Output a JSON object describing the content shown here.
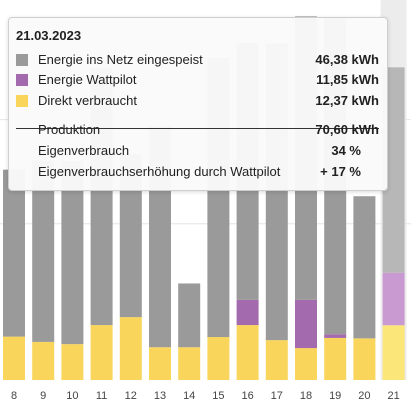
{
  "colors": {
    "grid": "#e6e6e6",
    "highlight_band": "#ececec"
  },
  "chart_data": {
    "type": "bar",
    "stacked": true,
    "categories": [
      "8",
      "9",
      "10",
      "11",
      "12",
      "13",
      "14",
      "15",
      "16",
      "17",
      "18",
      "19",
      "20",
      "21"
    ],
    "ylim": [
      0,
      84
    ],
    "grid": true,
    "highlighted_category": "21",
    "series": [
      {
        "name": "Direkt verbraucht",
        "color": "#f9d55b",
        "highlight_color": "#fbe67a",
        "values": [
          9.8,
          8.6,
          8.1,
          12.4,
          14.2,
          7.4,
          7.4,
          9.7,
          12.4,
          9.0,
          7.2,
          9.5,
          9.4,
          12.37
        ]
      },
      {
        "name": "Energie Wattpilot",
        "color": "#a46aae",
        "highlight_color": "#c99ad1",
        "values": [
          0,
          0,
          0,
          0,
          0,
          0,
          0,
          0,
          5.7,
          0,
          10.9,
          0.8,
          0,
          11.85
        ]
      },
      {
        "name": "Energie ins Netz eingespeist",
        "color": "#9a9a9a",
        "highlight_color": "#b7b7b7",
        "values": [
          37.7,
          41.0,
          41.4,
          58.0,
          36.8,
          49.9,
          14.4,
          63.0,
          58.0,
          67.0,
          64.0,
          71.5,
          32.1,
          46.38
        ]
      }
    ]
  },
  "tooltip": {
    "date": "21.03.2023",
    "series_rows": [
      {
        "label": "Energie ins Netz eingespeist",
        "value": "46,38 kWh",
        "color": "#9a9a9a"
      },
      {
        "label": "Energie Wattpilot",
        "value": "11,85 kWh",
        "color": "#a46aae"
      },
      {
        "label": "Direkt verbraucht",
        "value": "12,37 kWh",
        "color": "#f9d55b"
      }
    ],
    "summary_rows": [
      {
        "label": "Produktion",
        "value": "70,60 kWh"
      },
      {
        "label": "Eigenverbrauch",
        "value": "34 %"
      },
      {
        "label": "Eigenverbrauchserhöhung durch Wattpilot",
        "value": "+ 17 %"
      }
    ]
  }
}
